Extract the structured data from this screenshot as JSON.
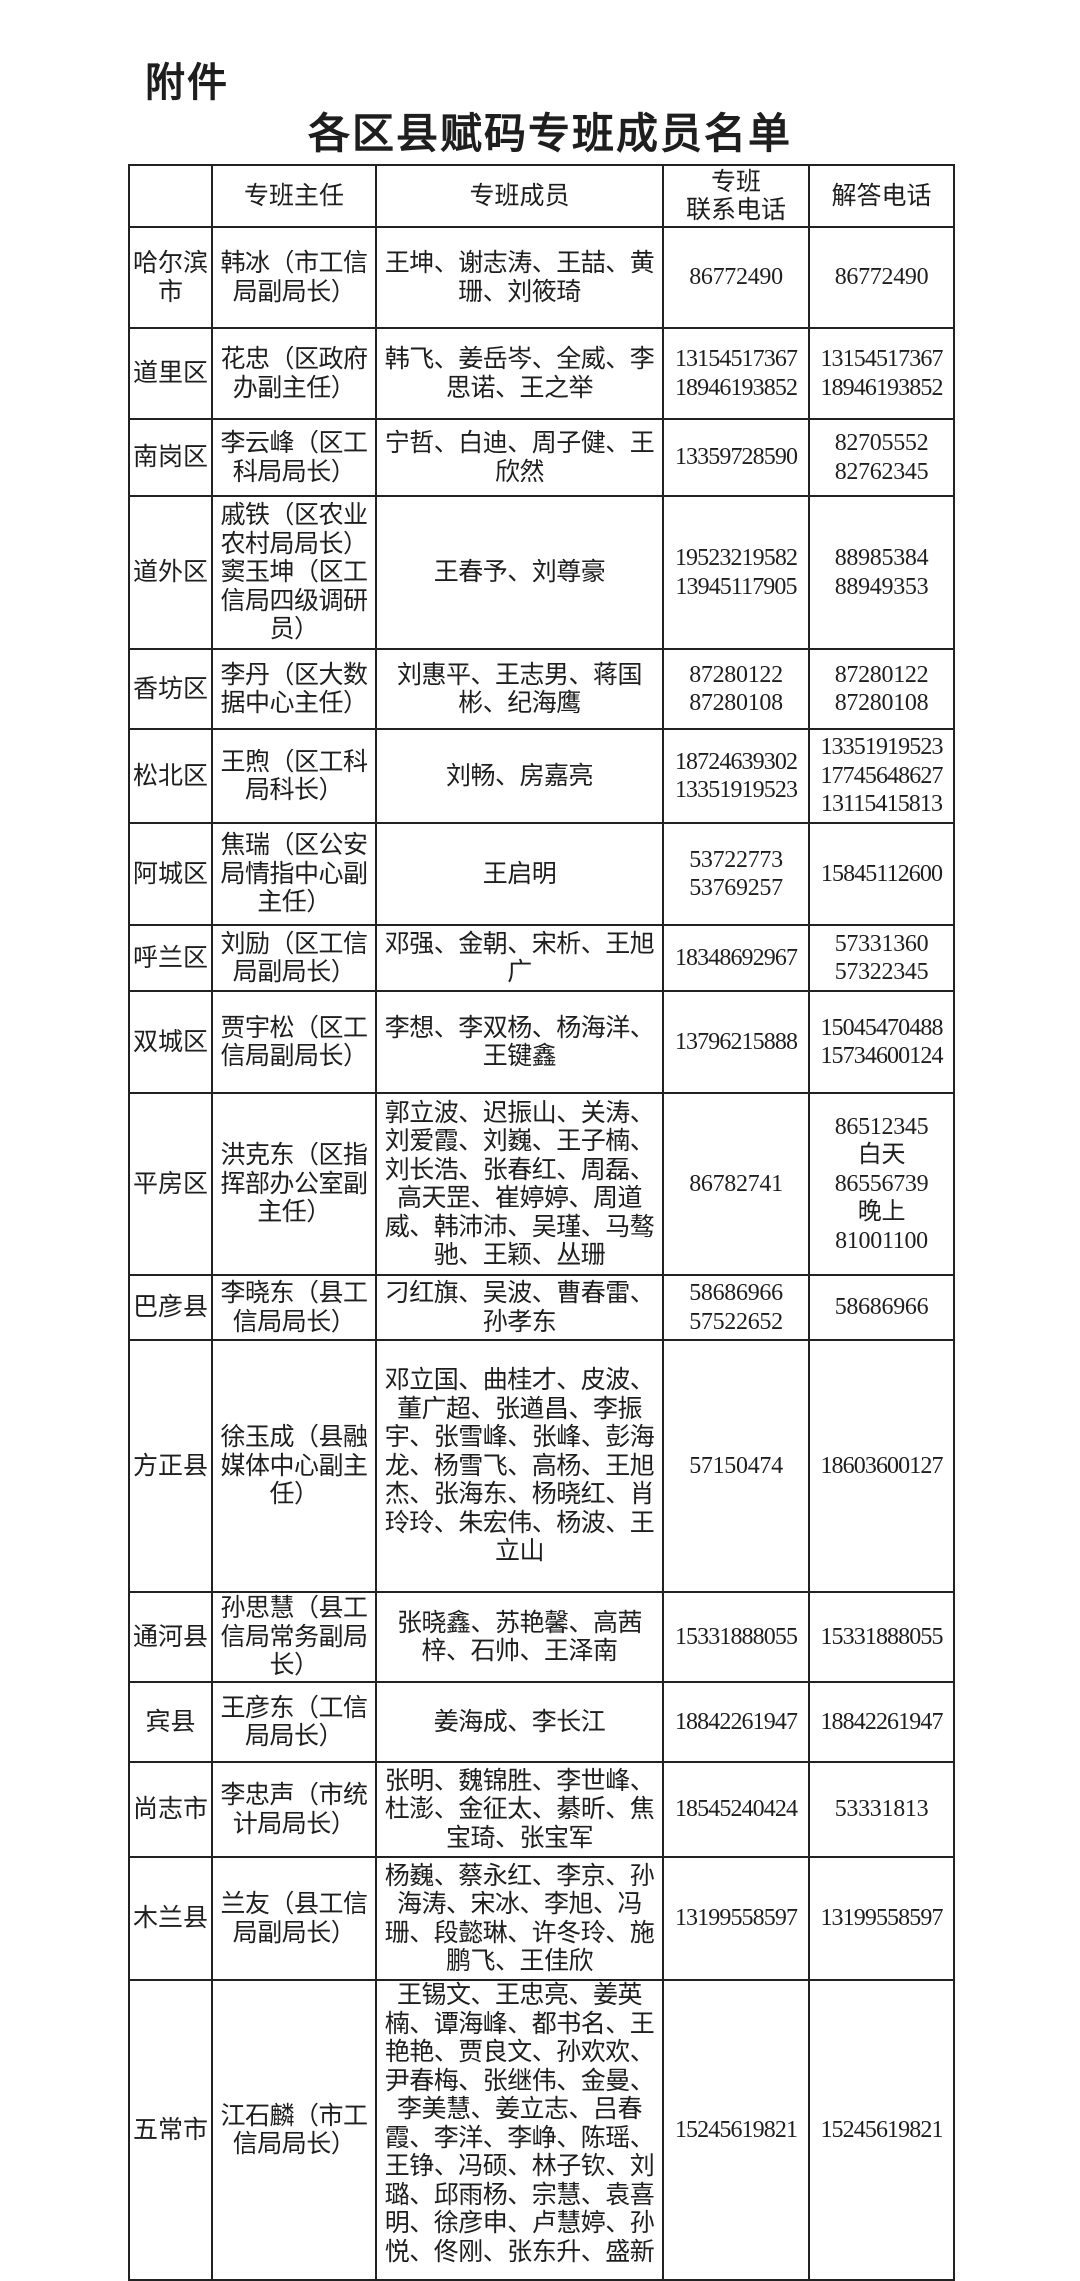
{
  "attachment_label": "附件",
  "title": "各区县赋码专班成员名单",
  "table": {
    "headers": [
      "",
      "专班主任",
      "专班成员",
      "专班\n联系电话",
      "解答电话"
    ],
    "rows": [
      {
        "district": "哈尔滨\n市",
        "director": "韩冰（市工信\n局副局长）",
        "members": "王坤、谢志涛、王喆、黄\n珊、刘筱琦",
        "contact_phone": "86772490",
        "hotline": "86772490"
      },
      {
        "district": "道里区",
        "director": "花忠（区政府\n办副主任）",
        "members": "韩飞、姜岳岑、全威、李\n思诺、王之举",
        "contact_phone": "13154517367\n18946193852",
        "hotline": "13154517367\n18946193852"
      },
      {
        "district": "南岗区",
        "director": "李云峰（区工\n科局局长）",
        "members": "宁哲、白迪、周子健、王\n欣然",
        "contact_phone": "13359728590",
        "hotline": "82705552\n82762345"
      },
      {
        "district": "道外区",
        "director": "戚铁（区农业\n农村局局长）\n窦玉坤（区工\n信局四级调研\n员）",
        "members": "王春予、刘尊豪",
        "contact_phone": "19523219582\n13945117905",
        "hotline": "88985384\n88949353"
      },
      {
        "district": "香坊区",
        "director": "李丹（区大数\n据中心主任）",
        "members": "刘惠平、王志男、蒋国\n彬、纪海鹰",
        "contact_phone": "87280122\n87280108",
        "hotline": "87280122\n87280108"
      },
      {
        "district": "松北区",
        "director": "王煦（区工科\n局科长）",
        "members": "刘畅、房嘉亮",
        "contact_phone": "18724639302\n13351919523",
        "hotline": "13351919523\n17745648627\n13115415813"
      },
      {
        "district": "阿城区",
        "director": "焦瑞（区公安\n局情指中心副\n主任）",
        "members": "王启明",
        "contact_phone": "53722773\n53769257",
        "hotline": "15845112600"
      },
      {
        "district": "呼兰区",
        "director": "刘励（区工信\n局副局长）",
        "members": "邓强、金朝、宋析、王旭\n广",
        "contact_phone": "18348692967",
        "hotline": "57331360\n57322345"
      },
      {
        "district": "双城区",
        "director": "贾宇松（区工\n信局副局长）",
        "members": "李想、李双杨、杨海洋、\n王键鑫",
        "contact_phone": "13796215888",
        "hotline": "15045470488\n15734600124"
      },
      {
        "district": "平房区",
        "director": "洪克东（区指\n挥部办公室副\n主任）",
        "members": "郭立波、迟振山、关涛、\n刘爱霞、刘巍、王子楠、\n刘长浩、张春红、周磊、\n高天罡、崔婷婷、周道\n威、韩沛沛、吴瑾、马骜\n驰、王颖、丛珊",
        "contact_phone": "86782741",
        "hotline": "86512345\n白天\n86556739\n晚上\n81001100"
      },
      {
        "district": "巴彦县",
        "director": "李晓东（县工\n信局局长）",
        "members": "刁红旗、吴波、曹春雷、\n孙孝东",
        "contact_phone": "58686966\n57522652",
        "hotline": "58686966"
      },
      {
        "district": "方正县",
        "director": "徐玉成（县融\n媒体中心副主\n任）",
        "members": "邓立国、曲桂才、皮波、\n董广超、张遒昌、李振\n宇、张雪峰、张峰、彭海\n龙、杨雪飞、高杨、王旭\n杰、张海东、杨晓红、肖\n玲玲、朱宏伟、杨波、王\n立山",
        "contact_phone": "57150474",
        "hotline": "18603600127"
      },
      {
        "district": "通河县",
        "director": "孙思慧（县工\n信局常务副局\n长）",
        "members": "张晓鑫、苏艳馨、高茜\n梓、石帅、王泽南",
        "contact_phone": "15331888055",
        "hotline": "15331888055"
      },
      {
        "district": "宾县",
        "director": "王彦东（工信\n局局长）",
        "members": "姜海成、李长江",
        "contact_phone": "18842261947",
        "hotline": "18842261947"
      },
      {
        "district": "尚志市",
        "director": "李忠声（市统\n计局局长）",
        "members": "张明、魏锦胜、李世峰、\n杜澎、金征太、綦昕、焦\n宝琦、张宝军",
        "contact_phone": "18545240424",
        "hotline": "53331813"
      },
      {
        "district": "木兰县",
        "director": "兰友（县工信\n局副局长）",
        "members": "杨巍、蔡永红、李京、孙\n海涛、宋冰、李旭、冯\n珊、段懿琳、许冬玲、施\n鹏飞、王佳欣",
        "contact_phone": "13199558597",
        "hotline": "13199558597"
      },
      {
        "district": "五常市",
        "director": "江石麟（市工\n信局局长）",
        "members": "王锡文、王忠亮、姜英\n楠、谭海峰、都书名、王\n艳艳、贾良文、孙欢欢、\n尹春梅、张继伟、金曼、\n李美慧、姜立志、吕春\n霞、李洋、李峥、陈瑶、\n王铮、冯硕、林子钦、刘\n璐、邱雨杨、宗慧、袁喜\n明、徐彦申、卢慧婷、孙\n悦、佟刚、张东升、盛新",
        "contact_phone": "15245619821",
        "hotline": "15245619821"
      }
    ]
  }
}
